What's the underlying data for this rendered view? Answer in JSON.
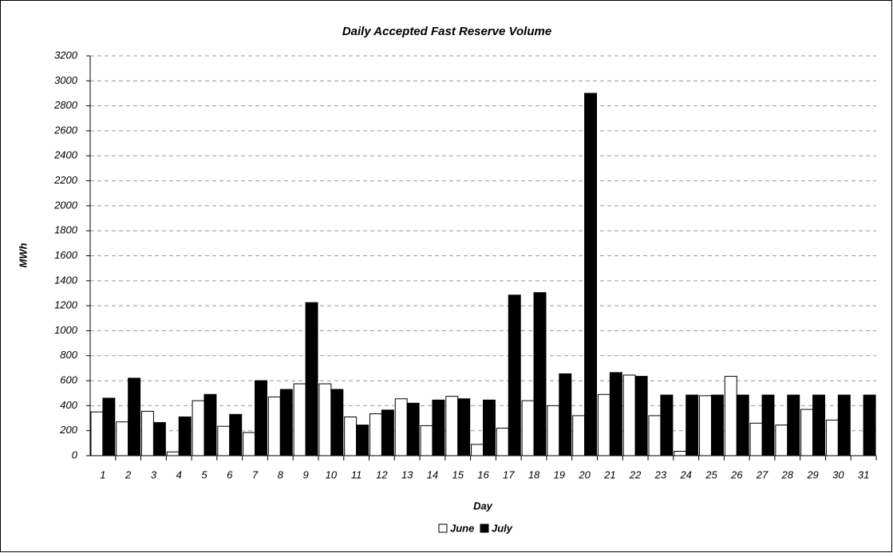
{
  "chart_data": {
    "type": "bar",
    "title": "Daily Accepted Fast Reserve Volume",
    "x_label": "Day",
    "y_label": "MWh",
    "categories": [
      "1",
      "2",
      "3",
      "4",
      "5",
      "6",
      "7",
      "8",
      "9",
      "10",
      "11",
      "12",
      "13",
      "14",
      "15",
      "16",
      "17",
      "18",
      "19",
      "20",
      "21",
      "22",
      "23",
      "24",
      "25",
      "26",
      "27",
      "28",
      "29",
      "30",
      "31"
    ],
    "series": [
      {
        "name": "June",
        "color": "#ffffff",
        "values": [
          350,
          270,
          355,
          30,
          440,
          235,
          185,
          470,
          575,
          575,
          310,
          335,
          455,
          240,
          475,
          90,
          220,
          440,
          400,
          320,
          490,
          645,
          320,
          35,
          480,
          635,
          260,
          245,
          370,
          285,
          null
        ]
      },
      {
        "name": "July",
        "color": "#000000",
        "values": [
          460,
          620,
          265,
          310,
          490,
          330,
          600,
          530,
          1225,
          530,
          245,
          365,
          420,
          445,
          455,
          445,
          1285,
          1305,
          655,
          2900,
          665,
          635,
          485,
          485,
          485,
          485,
          485,
          485,
          485,
          485,
          485
        ]
      }
    ],
    "ylim": [
      0,
      3200
    ],
    "yticks": [
      0,
      200,
      400,
      600,
      800,
      1000,
      1200,
      1400,
      1600,
      1800,
      2000,
      2200,
      2400,
      2600,
      2800,
      3000,
      3200
    ],
    "grid": true,
    "legend": "bottom"
  }
}
